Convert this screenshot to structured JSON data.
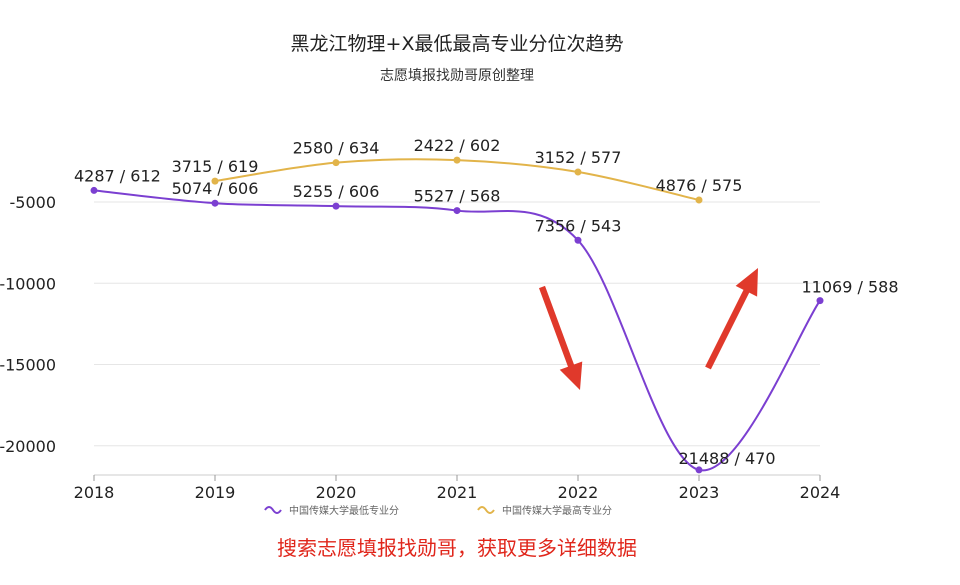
{
  "chart_data": {
    "type": "line",
    "title": "黑龙江物理+X最低最高专业分位次趋势",
    "subtitle": "志愿填报找勋哥原创整理",
    "x": [
      "2018",
      "2019",
      "2020",
      "2021",
      "2022",
      "2023",
      "2024"
    ],
    "yticks": [
      -5000,
      -10000,
      -15000,
      -20000
    ],
    "ylim": [
      -21800,
      -1800
    ],
    "smooth": true,
    "grid": true,
    "legend_position": "bottom",
    "series": [
      {
        "name": "中国传媒大学最低专业分",
        "color": "#7b3fd1",
        "values": [
          -4287,
          -5074,
          -5255,
          -5527,
          -7356,
          -21488,
          -11069
        ],
        "labels": [
          "4287 / 612",
          "5074 / 606",
          "5255 / 606",
          "5527 / 568",
          "7356 / 543",
          "21488 / 470",
          "11069 / 588"
        ]
      },
      {
        "name": "中国传媒大学最高专业分",
        "color": "#e2b44a",
        "values": [
          null,
          -3715,
          -2580,
          -2422,
          -3152,
          -4876,
          null
        ],
        "labels": [
          null,
          "3715 / 619",
          "2580 / 634",
          "2422 / 602",
          "3152 / 577",
          "4876 / 575",
          null
        ]
      }
    ],
    "annotation": "搜索志愿填报找勋哥，获取更多详细数据",
    "annotation_color": "#e0261b",
    "arrow_color": "#e0392b"
  }
}
